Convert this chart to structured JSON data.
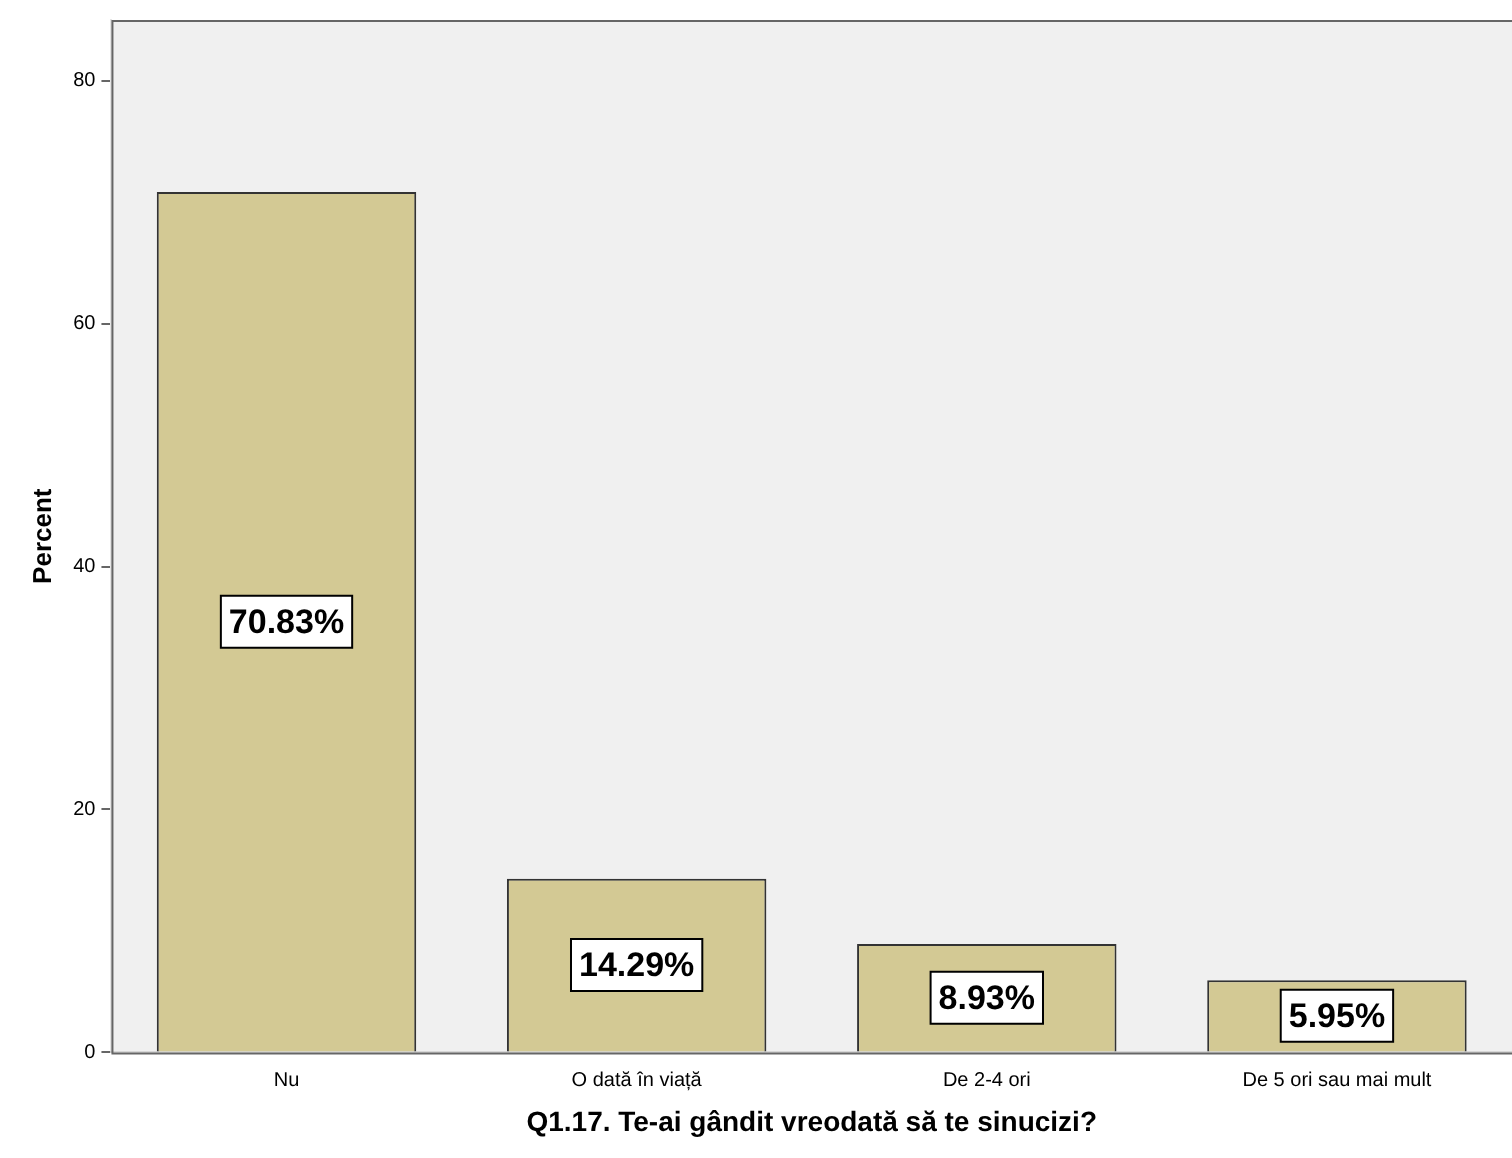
{
  "chart_data": {
    "type": "bar",
    "xlabel": "Q1.17. Te-ai gândit vreodată să te sinucizi?",
    "ylabel": "Percent",
    "categories": [
      "Nu",
      "O dată în viață",
      "De 2-4 ori",
      "De 5 ori sau mai mult"
    ],
    "values": [
      70.83,
      14.29,
      8.93,
      5.95
    ],
    "value_labels": [
      "70.83%",
      "14.29%",
      "8.93%",
      "5.95%"
    ],
    "color": "#d3c994",
    "ylim": [
      0,
      85
    ],
    "yticks": [
      0,
      20,
      40,
      60,
      80
    ],
    "grid": false,
    "legend": false
  }
}
